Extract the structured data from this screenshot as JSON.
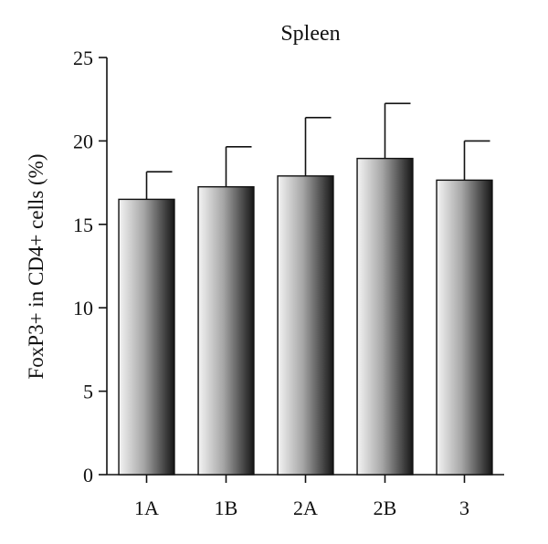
{
  "chart_data": {
    "type": "bar",
    "title": "Spleen",
    "xlabel": "",
    "ylabel": "FoxP3+ in CD4+ cells (%)",
    "categories": [
      "1A",
      "1B",
      "2A",
      "2B",
      "3"
    ],
    "values": [
      16.5,
      17.25,
      17.9,
      18.95,
      17.65
    ],
    "errors": [
      1.65,
      2.4,
      3.5,
      3.3,
      2.35
    ],
    "ylim": [
      0,
      25
    ],
    "yticks": [
      0,
      5,
      10,
      15,
      20,
      25
    ],
    "grid": false,
    "legend": "none",
    "colors": {
      "bar_light": "#f4f4f4",
      "bar_mid": "#9a9a9a",
      "bar_dark": "#161616",
      "axis": "#111111"
    }
  }
}
